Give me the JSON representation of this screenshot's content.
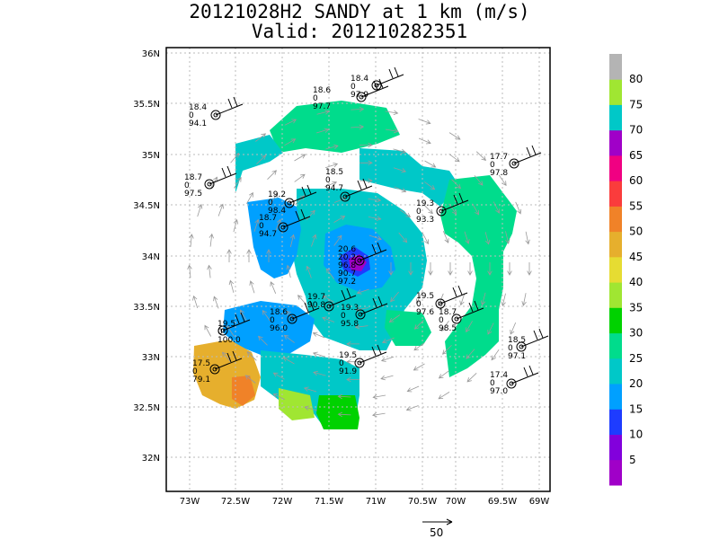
{
  "title": {
    "line1": "20121028H2 SANDY at 1 km (m/s)",
    "line2": "Valid: 201210282351"
  },
  "axes": {
    "x_ticks": [
      "73W",
      "72.5W",
      "72W",
      "71.5W",
      "71W",
      "70.5W",
      "70W",
      "69.5W",
      "69W"
    ],
    "y_ticks": [
      "36N",
      "35.5N",
      "35N",
      "34.5N",
      "34N",
      "33.5N",
      "33N",
      "32.5N",
      "32N"
    ]
  },
  "colorbar": {
    "levels": [
      "5",
      "10",
      "15",
      "20",
      "25",
      "30",
      "35",
      "40",
      "45",
      "50",
      "55",
      "60",
      "65",
      "70",
      "75",
      "80"
    ],
    "colors": [
      "#a000c8",
      "#8200dc",
      "#1e3cff",
      "#00a0ff",
      "#00c8c8",
      "#00dc8c",
      "#00d200",
      "#a0e632",
      "#e6dc32",
      "#e6af2d",
      "#f08228",
      "#fa3c3c",
      "#f00082",
      "#a000c8",
      "#00c8c8",
      "#a0e632",
      "#b4b4b4"
    ]
  },
  "stations": [
    {
      "id": "s1",
      "lines": [
        "18.4",
        "0",
        "94.1"
      ]
    },
    {
      "id": "s2",
      "lines": [
        "18.6",
        "0",
        "97.7"
      ]
    },
    {
      "id": "s3",
      "lines": [
        "18.4",
        "0",
        "97.9"
      ]
    },
    {
      "id": "s4",
      "lines": [
        "18.7",
        "0",
        "97.5"
      ]
    },
    {
      "id": "s5",
      "lines": [
        "18.5",
        "0",
        "94.7"
      ]
    },
    {
      "id": "s6",
      "lines": [
        "19.2",
        "0",
        "98.4"
      ]
    },
    {
      "id": "s7",
      "lines": [
        "18.7",
        "0",
        "94.7"
      ]
    },
    {
      "id": "s8",
      "lines": [
        "19.3",
        "0",
        "93.3"
      ]
    },
    {
      "id": "s9",
      "lines": [
        "17.7",
        "0",
        "97.8"
      ]
    },
    {
      "id": "s10",
      "lines": [
        "20.6",
        "20.2",
        "96.8",
        "90.7",
        "97.2"
      ]
    },
    {
      "id": "s11",
      "lines": [
        "19.7",
        "90.8"
      ]
    },
    {
      "id": "s12",
      "lines": [
        "19.3",
        "0",
        "95.8"
      ]
    },
    {
      "id": "s13",
      "lines": [
        "19.5",
        "0",
        "97.6"
      ]
    },
    {
      "id": "s14",
      "lines": [
        "18.7",
        "0",
        "98.5"
      ]
    },
    {
      "id": "s15",
      "lines": [
        "18.6",
        "0",
        "96.0"
      ]
    },
    {
      "id": "s16",
      "lines": [
        "19.5",
        "0",
        "100.0"
      ]
    },
    {
      "id": "s17",
      "lines": [
        "17.5",
        "0",
        "79.1"
      ]
    },
    {
      "id": "s18",
      "lines": [
        "19.5",
        "0",
        "91.9"
      ]
    },
    {
      "id": "s19",
      "lines": [
        "18.5",
        "0",
        "97.1"
      ]
    },
    {
      "id": "s20",
      "lines": [
        "17.4",
        "0",
        "97.0"
      ]
    }
  ],
  "reference_vector": {
    "label": "50"
  }
}
